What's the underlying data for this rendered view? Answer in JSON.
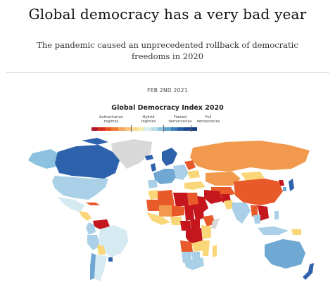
{
  "article": {
    "headline": "Global democracy has a very bad year",
    "subhead": "The pandemic caused an unprecedented rollback of democratic freedoms in 2020",
    "date": "FEB 2ND 2021"
  },
  "map": {
    "title": "Global Democracy Index 2020",
    "legend": {
      "categories": [
        {
          "label": "Authoritarian regimes"
        },
        {
          "label": "Hybrid regimes"
        },
        {
          "label": "Flawed democracies"
        },
        {
          "label": "Full democracies"
        }
      ],
      "scale_colors": [
        "#b2182b",
        "#d6301f",
        "#e8521f",
        "#f07a30",
        "#f6a35a",
        "#f8c27b",
        "#f9de8f",
        "#f4ecb0",
        "#d9ecef",
        "#b6dbea",
        "#8cc2df",
        "#5e9fcc",
        "#3f7fbc",
        "#2a5ea6",
        "#1f4a91",
        "#163b7f"
      ]
    },
    "colors": {
      "authoritarian_dark": "#c4161c",
      "authoritarian": "#e85a2a",
      "authoritarian_light": "#f19a4e",
      "hybrid": "#f9d779",
      "flawed_light": "#d6eaf2",
      "flawed": "#a9d0e6",
      "full_light": "#6fa8d3",
      "full": "#2f62ad",
      "no_data": "#d8d8d8"
    }
  }
}
